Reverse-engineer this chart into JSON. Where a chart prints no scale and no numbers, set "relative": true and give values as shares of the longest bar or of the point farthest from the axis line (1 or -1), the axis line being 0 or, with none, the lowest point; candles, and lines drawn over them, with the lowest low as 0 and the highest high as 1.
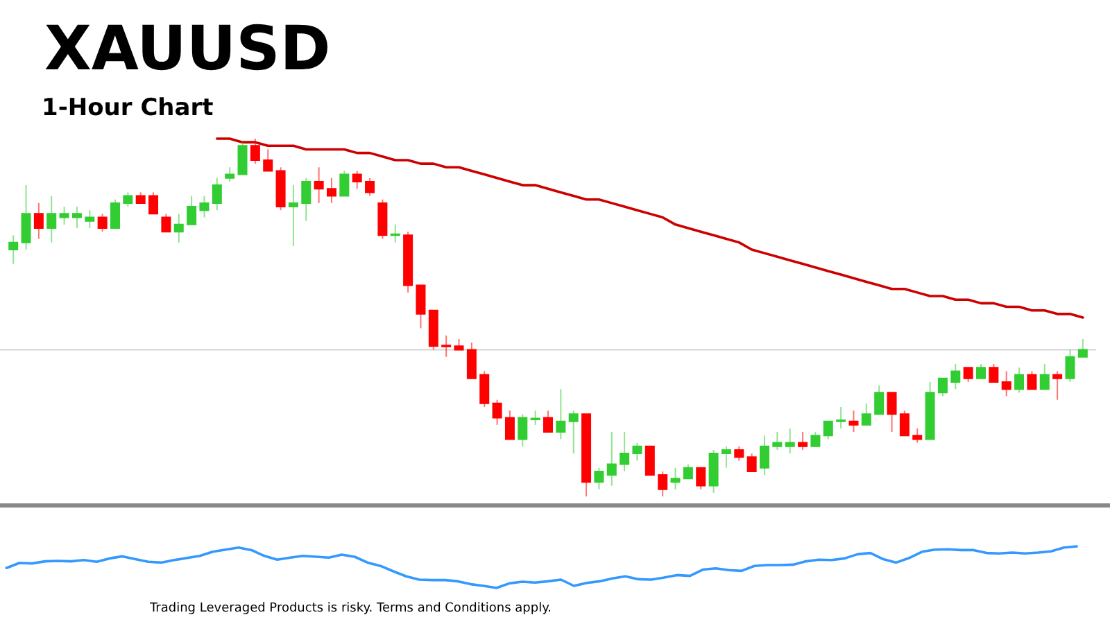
{
  "chart_data": [
    {
      "type": "candlestick",
      "title": "XAUUSD",
      "subtitle": "1-Hour Chart",
      "relative": true,
      "categories": [
        null,
        null,
        null,
        null,
        null,
        null,
        null,
        null,
        null,
        null,
        null,
        null,
        null,
        null,
        null,
        null,
        null,
        null,
        null,
        null,
        null,
        null,
        null,
        null,
        null,
        null,
        null,
        null,
        null,
        null,
        null,
        null,
        null,
        null,
        null,
        null,
        null,
        null,
        null,
        null,
        null,
        null,
        null,
        null,
        null,
        null,
        null,
        null,
        null,
        null,
        null,
        null,
        null,
        null,
        null,
        null,
        null,
        null,
        null,
        null,
        null,
        null,
        null,
        null,
        null,
        null,
        null,
        null,
        null,
        null,
        null,
        null,
        null,
        null,
        null,
        null,
        null,
        null,
        null,
        null,
        null,
        null,
        null,
        null,
        null
      ],
      "ohlc": [
        [
          0.69,
          0.73,
          0.65,
          0.71
        ],
        [
          0.71,
          0.87,
          0.69,
          0.79
        ],
        [
          0.79,
          0.82,
          0.72,
          0.75
        ],
        [
          0.75,
          0.84,
          0.71,
          0.79
        ],
        [
          0.78,
          0.81,
          0.76,
          0.79
        ],
        [
          0.78,
          0.81,
          0.75,
          0.79
        ],
        [
          0.77,
          0.8,
          0.75,
          0.78
        ],
        [
          0.78,
          0.79,
          0.74,
          0.75
        ],
        [
          0.75,
          0.83,
          0.75,
          0.82
        ],
        [
          0.82,
          0.85,
          0.81,
          0.84
        ],
        [
          0.84,
          0.85,
          0.82,
          0.82
        ],
        [
          0.84,
          0.85,
          0.79,
          0.79
        ],
        [
          0.78,
          0.79,
          0.74,
          0.74
        ],
        [
          0.74,
          0.79,
          0.71,
          0.76
        ],
        [
          0.76,
          0.84,
          0.76,
          0.81
        ],
        [
          0.8,
          0.84,
          0.78,
          0.82
        ],
        [
          0.82,
          0.89,
          0.8,
          0.87
        ],
        [
          0.89,
          0.92,
          0.88,
          0.9
        ],
        [
          0.9,
          0.99,
          0.9,
          0.98
        ],
        [
          0.98,
          1.0,
          0.93,
          0.94
        ],
        [
          0.94,
          0.97,
          0.91,
          0.91
        ],
        [
          0.91,
          0.92,
          0.8,
          0.81
        ],
        [
          0.81,
          0.87,
          0.7,
          0.82
        ],
        [
          0.82,
          0.89,
          0.77,
          0.88
        ],
        [
          0.88,
          0.92,
          0.82,
          0.86
        ],
        [
          0.86,
          0.89,
          0.82,
          0.84
        ],
        [
          0.84,
          0.91,
          0.84,
          0.9
        ],
        [
          0.9,
          0.91,
          0.86,
          0.88
        ],
        [
          0.88,
          0.89,
          0.84,
          0.85
        ],
        [
          0.82,
          0.83,
          0.72,
          0.73
        ],
        [
          0.73,
          0.76,
          0.71,
          0.733
        ],
        [
          0.73,
          0.74,
          0.57,
          0.59
        ],
        [
          0.59,
          0.59,
          0.47,
          0.51
        ],
        [
          0.52,
          0.52,
          0.41,
          0.42
        ],
        [
          0.422,
          0.45,
          0.39,
          0.419
        ],
        [
          0.42,
          0.44,
          0.41,
          0.41
        ],
        [
          0.41,
          0.43,
          0.33,
          0.33
        ],
        [
          0.34,
          0.35,
          0.25,
          0.26
        ],
        [
          0.26,
          0.27,
          0.2,
          0.22
        ],
        [
          0.22,
          0.24,
          0.16,
          0.16
        ],
        [
          0.16,
          0.23,
          0.14,
          0.22
        ],
        [
          0.215,
          0.24,
          0.2,
          0.218
        ],
        [
          0.22,
          0.24,
          0.18,
          0.18
        ],
        [
          0.18,
          0.3,
          0.16,
          0.21
        ],
        [
          0.21,
          0.24,
          0.12,
          0.23
        ],
        [
          0.23,
          0.23,
          0.0,
          0.04
        ],
        [
          0.04,
          0.08,
          0.02,
          0.07
        ],
        [
          0.06,
          0.18,
          0.03,
          0.09
        ],
        [
          0.09,
          0.18,
          0.07,
          0.12
        ],
        [
          0.12,
          0.15,
          0.1,
          0.14
        ],
        [
          0.14,
          0.14,
          0.06,
          0.06
        ],
        [
          0.06,
          0.07,
          0.0,
          0.02
        ],
        [
          0.04,
          0.08,
          0.02,
          0.05
        ],
        [
          0.05,
          0.09,
          0.05,
          0.08
        ],
        [
          0.08,
          0.08,
          0.02,
          0.03
        ],
        [
          0.03,
          0.13,
          0.01,
          0.12
        ],
        [
          0.12,
          0.14,
          0.08,
          0.13
        ],
        [
          0.13,
          0.14,
          0.1,
          0.11
        ],
        [
          0.11,
          0.12,
          0.07,
          0.07
        ],
        [
          0.08,
          0.17,
          0.06,
          0.14
        ],
        [
          0.14,
          0.18,
          0.13,
          0.15
        ],
        [
          0.14,
          0.19,
          0.12,
          0.15
        ],
        [
          0.15,
          0.18,
          0.13,
          0.14
        ],
        [
          0.14,
          0.18,
          0.14,
          0.17
        ],
        [
          0.17,
          0.21,
          0.16,
          0.21
        ],
        [
          0.21,
          0.25,
          0.19,
          0.213
        ],
        [
          0.21,
          0.24,
          0.18,
          0.2
        ],
        [
          0.2,
          0.26,
          0.2,
          0.23
        ],
        [
          0.23,
          0.31,
          0.23,
          0.29
        ],
        [
          0.29,
          0.29,
          0.18,
          0.23
        ],
        [
          0.23,
          0.24,
          0.17,
          0.17
        ],
        [
          0.17,
          0.19,
          0.15,
          0.16
        ],
        [
          0.16,
          0.32,
          0.16,
          0.29
        ],
        [
          0.29,
          0.33,
          0.28,
          0.33
        ],
        [
          0.32,
          0.37,
          0.3,
          0.35
        ],
        [
          0.36,
          0.36,
          0.32,
          0.33
        ],
        [
          0.33,
          0.37,
          0.33,
          0.36
        ],
        [
          0.36,
          0.37,
          0.32,
          0.32
        ],
        [
          0.32,
          0.35,
          0.28,
          0.3
        ],
        [
          0.3,
          0.36,
          0.29,
          0.34
        ],
        [
          0.34,
          0.35,
          0.3,
          0.3
        ],
        [
          0.3,
          0.37,
          0.3,
          0.34
        ],
        [
          0.34,
          0.35,
          0.27,
          0.33
        ],
        [
          0.33,
          0.41,
          0.32,
          0.39
        ],
        [
          0.39,
          0.44,
          0.39,
          0.41
        ]
      ],
      "colors": [
        "#32cd32",
        "#32cd32",
        "#ff0000",
        "#32cd32",
        "#32cd32",
        "#32cd32",
        "#32cd32",
        "#ff0000",
        "#32cd32",
        "#32cd32",
        "#ff0000",
        "#ff0000",
        "#ff0000",
        "#32cd32",
        "#32cd32",
        "#32cd32",
        "#32cd32",
        "#32cd32",
        "#32cd32",
        "#ff0000",
        "#ff0000",
        "#ff0000",
        "#32cd32",
        "#32cd32",
        "#ff0000",
        "#ff0000",
        "#32cd32",
        "#ff0000",
        "#ff0000",
        "#ff0000",
        "#32cd32",
        "#ff0000",
        "#ff0000",
        "#ff0000",
        "#ff0000",
        "#ff0000",
        "#ff0000",
        "#ff0000",
        "#ff0000",
        "#ff0000",
        "#32cd32",
        "#32cd32",
        "#ff0000",
        "#32cd32",
        "#32cd32",
        "#ff0000",
        "#32cd32",
        "#32cd32",
        "#32cd32",
        "#32cd32",
        "#ff0000",
        "#ff0000",
        "#32cd32",
        "#32cd32",
        "#ff0000",
        "#32cd32",
        "#32cd32",
        "#ff0000",
        "#ff0000",
        "#32cd32",
        "#32cd32",
        "#32cd32",
        "#ff0000",
        "#32cd32",
        "#32cd32",
        "#32cd32",
        "#ff0000",
        "#32cd32",
        "#32cd32",
        "#ff0000",
        "#ff0000",
        "#ff0000",
        "#32cd32",
        "#32cd32",
        "#32cd32",
        "#ff0000",
        "#32cd32",
        "#ff0000",
        "#ff0000",
        "#32cd32",
        "#ff0000",
        "#32cd32",
        "#ff0000",
        "#32cd32",
        "#32cd32"
      ],
      "series": [
        {
          "type": "line",
          "color": "#cc0000",
          "values": [
            null,
            null,
            null,
            null,
            null,
            null,
            null,
            null,
            null,
            null,
            null,
            null,
            null,
            null,
            null,
            null,
            1.0,
            1.0,
            0.99,
            0.99,
            0.98,
            0.98,
            0.98,
            0.97,
            0.97,
            0.97,
            0.97,
            0.96,
            0.96,
            0.95,
            0.94,
            0.94,
            0.93,
            0.93,
            0.92,
            0.92,
            0.91,
            0.9,
            0.89,
            0.88,
            0.87,
            0.87,
            0.86,
            0.85,
            0.84,
            0.83,
            0.83,
            0.82,
            0.81,
            0.8,
            0.79,
            0.78,
            0.76,
            0.75,
            0.74,
            0.73,
            0.72,
            0.71,
            0.69,
            0.68,
            0.67,
            0.66,
            0.65,
            0.64,
            0.63,
            0.62,
            0.61,
            0.6,
            0.59,
            0.58,
            0.58,
            0.57,
            0.56,
            0.56,
            0.55,
            0.55,
            0.54,
            0.54,
            0.53,
            0.53,
            0.52,
            0.52,
            0.51,
            0.51,
            0.5
          ]
        }
      ],
      "ref_lines": [
        {
          "axis": "y",
          "value": 0.41,
          "color": "#d3d3d3"
        }
      ]
    },
    {
      "type": "line",
      "relative": true,
      "categories": [
        null,
        null,
        null,
        null,
        null,
        null,
        null,
        null,
        null,
        null,
        null,
        null,
        null,
        null,
        null,
        null,
        null,
        null,
        null,
        null,
        null,
        null,
        null,
        null,
        null,
        null,
        null,
        null,
        null,
        null,
        null,
        null,
        null,
        null,
        null,
        null,
        null,
        null,
        null,
        null,
        null,
        null,
        null,
        null,
        null,
        null,
        null,
        null,
        null,
        null,
        null,
        null,
        null,
        null,
        null,
        null,
        null,
        null,
        null,
        null,
        null,
        null,
        null,
        null,
        null,
        null,
        null,
        null,
        null,
        null,
        null,
        null,
        null,
        null,
        null,
        null,
        null,
        null,
        null,
        null,
        null,
        null,
        null,
        null,
        null
      ],
      "series": [
        {
          "color": "#3399ff",
          "values": [
            0.48,
            0.6,
            0.59,
            0.64,
            0.65,
            0.64,
            0.67,
            0.63,
            0.71,
            0.76,
            0.69,
            0.63,
            0.61,
            0.67,
            0.72,
            0.77,
            0.87,
            0.92,
            0.97,
            0.91,
            0.77,
            0.68,
            0.73,
            0.77,
            0.75,
            0.73,
            0.8,
            0.75,
            0.61,
            0.53,
            0.4,
            0.28,
            0.2,
            0.19,
            0.19,
            0.16,
            0.09,
            0.05,
            0.0,
            0.11,
            0.15,
            0.13,
            0.16,
            0.2,
            0.05,
            0.12,
            0.16,
            0.23,
            0.28,
            0.21,
            0.2,
            0.25,
            0.31,
            0.29,
            0.44,
            0.47,
            0.43,
            0.41,
            0.53,
            0.55,
            0.55,
            0.56,
            0.64,
            0.68,
            0.67,
            0.71,
            0.81,
            0.84,
            0.69,
            0.61,
            0.72,
            0.87,
            0.92,
            0.93,
            0.91,
            0.91,
            0.84,
            0.83,
            0.85,
            0.83,
            0.85,
            0.88,
            0.97,
            1.0,
            null
          ]
        }
      ],
      "annotations": [
        "Trading Leveraged Products is risky. Terms and Conditions apply."
      ]
    }
  ]
}
